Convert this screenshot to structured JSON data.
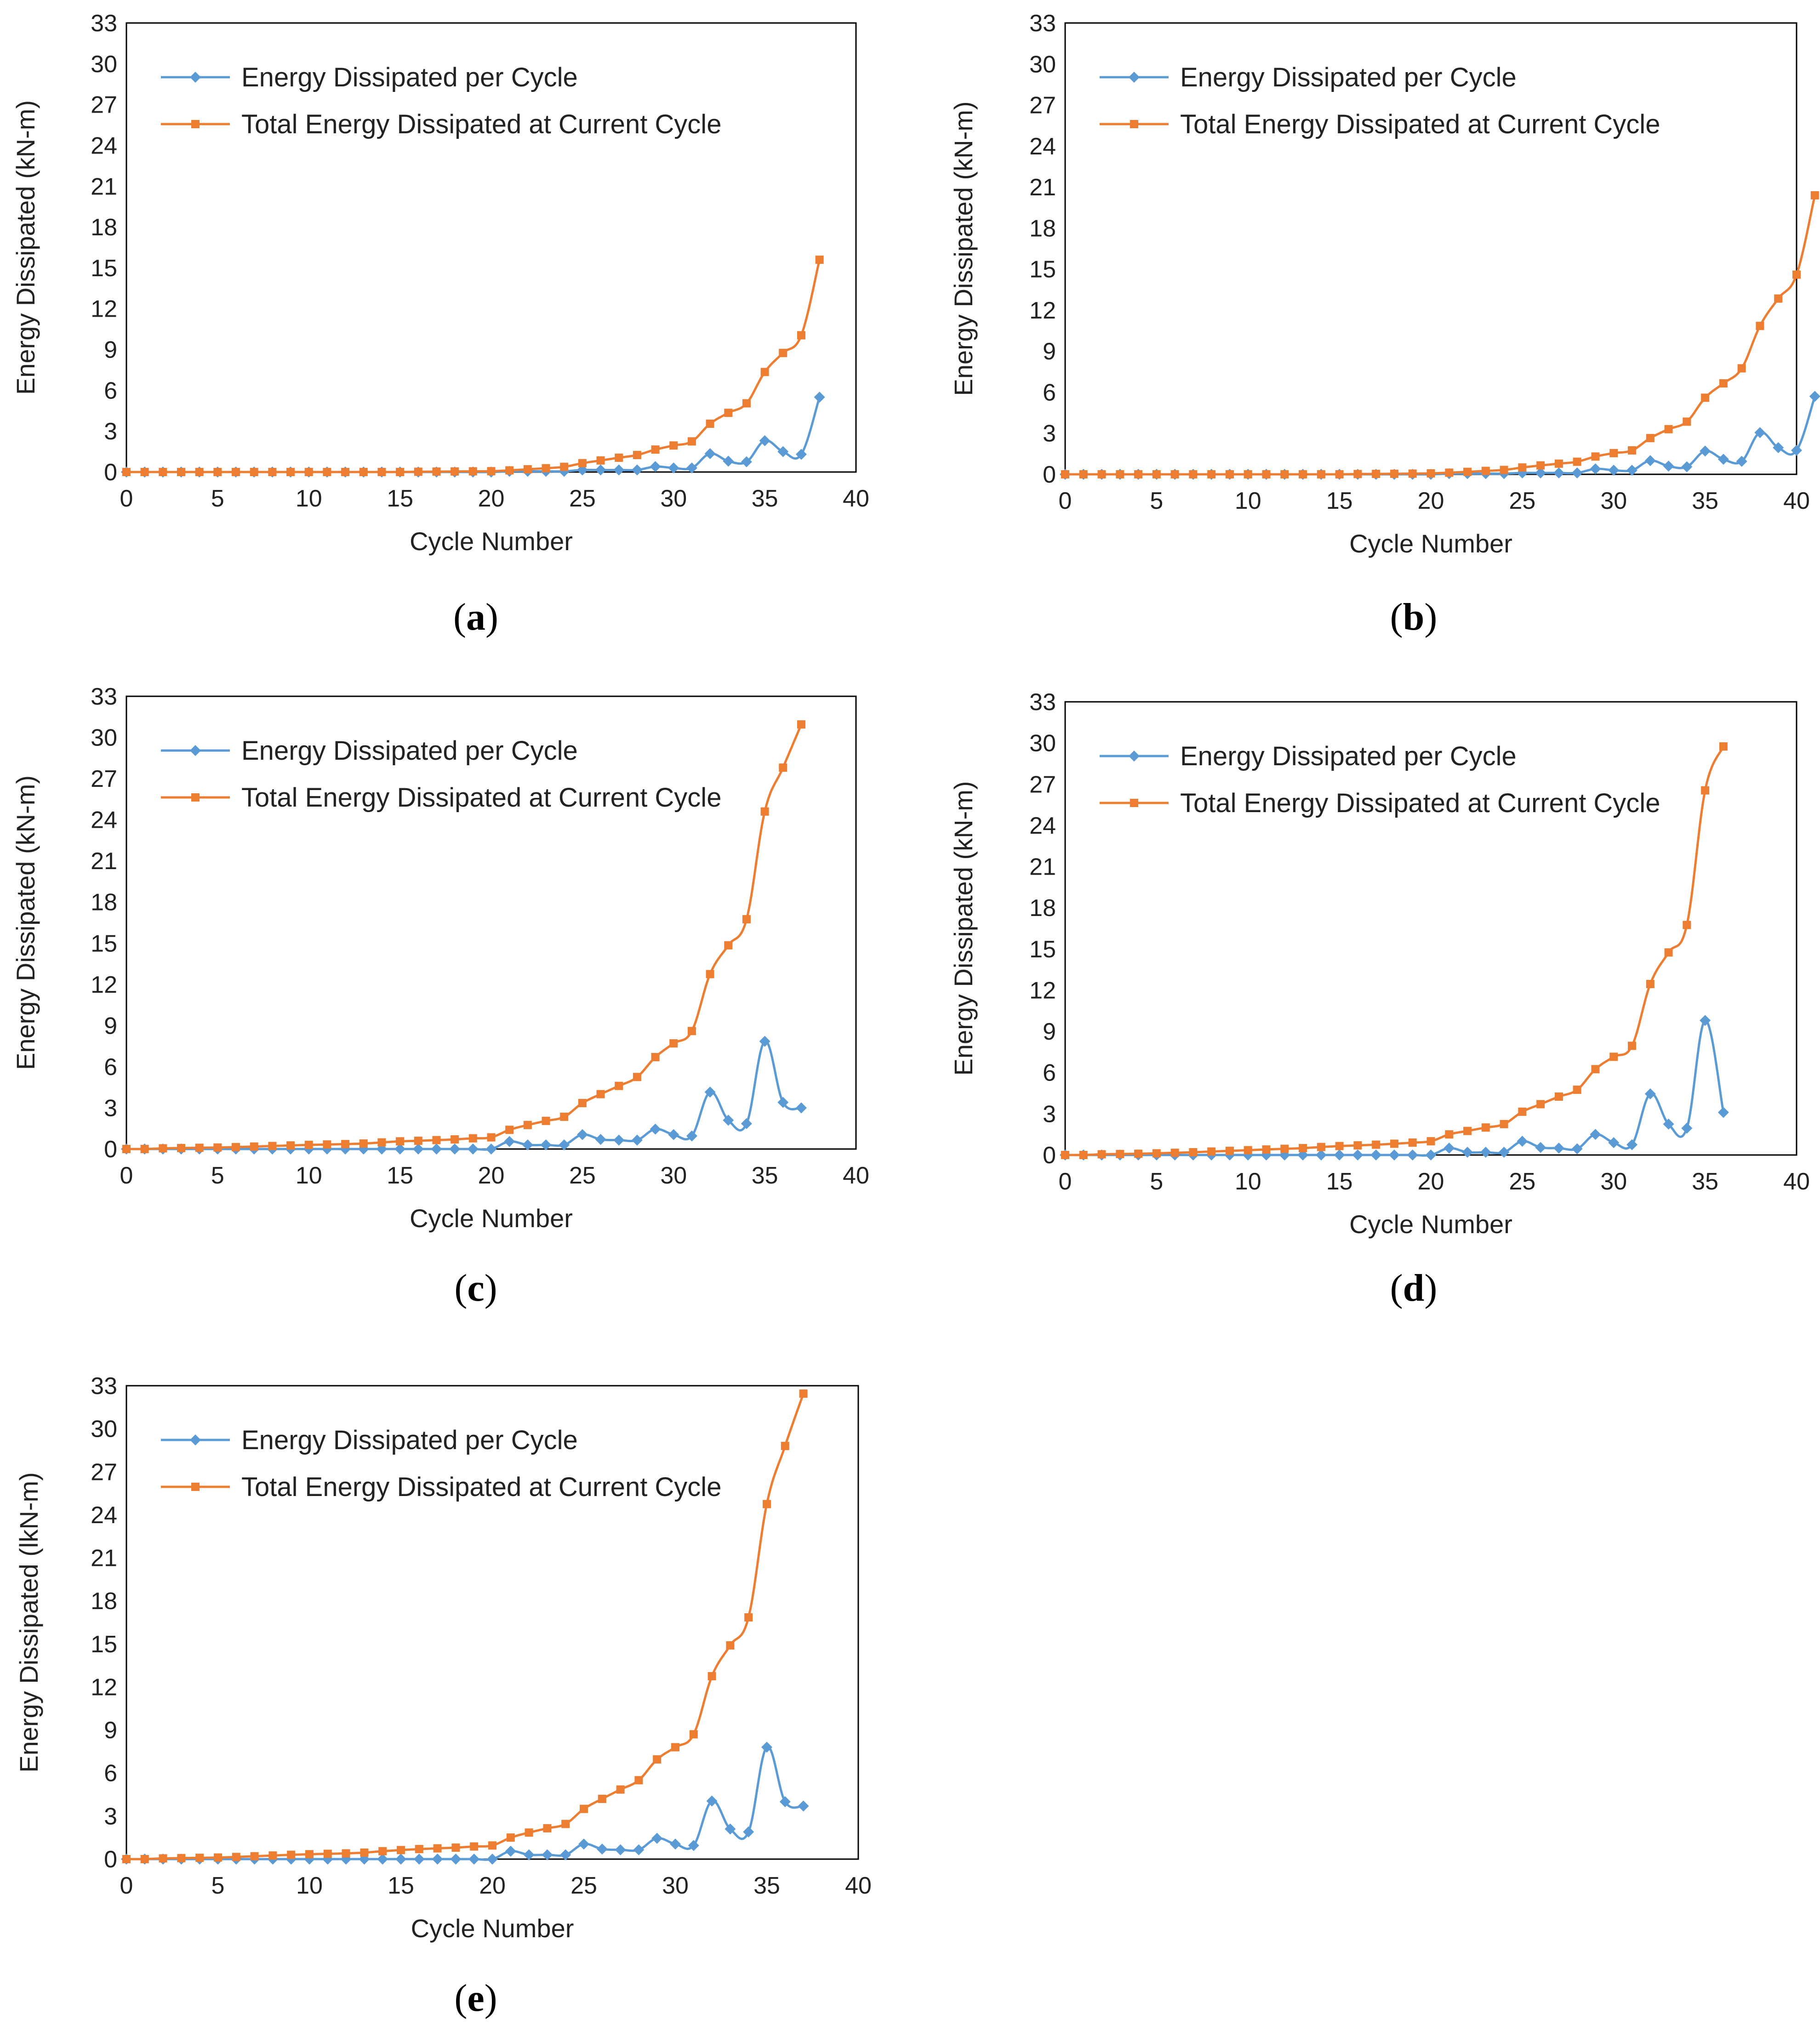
{
  "colors": {
    "per_cycle": "#5b9bd5",
    "total": "#ed7d31",
    "frame": "#000000"
  },
  "chart_data": [
    {
      "panel": "a",
      "type": "line",
      "xlabel": "Cycle Number",
      "ylabel": "Energy Dissipated (kN-m)",
      "xlim": [
        0,
        40
      ],
      "ylim": [
        0,
        33
      ],
      "xticks": [
        0,
        5,
        10,
        15,
        20,
        25,
        30,
        35,
        40
      ],
      "yticks": [
        0,
        3,
        6,
        9,
        12,
        15,
        18,
        21,
        24,
        27,
        30,
        33
      ],
      "legend_position": "top-left",
      "series": [
        {
          "name": "Energy Dissipated per Cycle",
          "marker": "diamond",
          "x": [
            0,
            1,
            2,
            3,
            4,
            5,
            6,
            7,
            8,
            9,
            10,
            11,
            12,
            13,
            14,
            15,
            16,
            17,
            18,
            19,
            20,
            21,
            22,
            23,
            24,
            25,
            26,
            27,
            28,
            29,
            30,
            31,
            32,
            33,
            34,
            35,
            36,
            37,
            38
          ],
          "y": [
            0,
            0,
            0,
            0,
            0,
            0,
            0,
            0,
            0,
            0,
            0,
            0,
            0,
            0,
            0,
            0,
            0,
            0,
            0,
            0,
            0,
            0.05,
            0.05,
            0.05,
            0.05,
            0.15,
            0.15,
            0.15,
            0.15,
            0.4,
            0.3,
            0.3,
            1.35,
            0.8,
            0.75,
            2.3,
            1.5,
            1.3,
            5.5
          ]
        },
        {
          "name": "Total Energy Dissipated at Current Cycle",
          "marker": "square",
          "x": [
            0,
            1,
            2,
            3,
            4,
            5,
            6,
            7,
            8,
            9,
            10,
            11,
            12,
            13,
            14,
            15,
            16,
            17,
            18,
            19,
            20,
            21,
            22,
            23,
            24,
            25,
            26,
            27,
            28,
            29,
            30,
            31,
            32,
            33,
            34,
            35,
            36,
            37,
            38
          ],
          "y": [
            0,
            0,
            0,
            0,
            0,
            0,
            0,
            0,
            0,
            0,
            0,
            0,
            0,
            0,
            0,
            0,
            0.02,
            0.03,
            0.04,
            0.05,
            0.06,
            0.12,
            0.2,
            0.28,
            0.38,
            0.65,
            0.85,
            1.05,
            1.25,
            1.65,
            1.95,
            2.25,
            3.55,
            4.35,
            5.05,
            7.35,
            8.75,
            10.05,
            15.6
          ]
        }
      ]
    },
    {
      "panel": "b",
      "type": "line",
      "xlabel": "Cycle Number",
      "ylabel": "Energy Dissipated (kN-m)",
      "xlim": [
        0,
        40
      ],
      "ylim": [
        0,
        33
      ],
      "xticks": [
        0,
        5,
        10,
        15,
        20,
        25,
        30,
        35,
        40
      ],
      "yticks": [
        0,
        3,
        6,
        9,
        12,
        15,
        18,
        21,
        24,
        27,
        30,
        33
      ],
      "legend_position": "top-left",
      "series": [
        {
          "name": "Energy Dissipated per Cycle",
          "marker": "diamond",
          "x": [
            0,
            1,
            2,
            3,
            4,
            5,
            6,
            7,
            8,
            9,
            10,
            11,
            12,
            13,
            14,
            15,
            16,
            17,
            18,
            19,
            20,
            21,
            22,
            23,
            24,
            25,
            26,
            27,
            28,
            29,
            30,
            31,
            32,
            33,
            34,
            35,
            36,
            37,
            38,
            39,
            40,
            41
          ],
          "y": [
            0,
            0,
            0,
            0,
            0,
            0,
            0,
            0,
            0,
            0,
            0,
            0,
            0,
            0,
            0,
            0,
            0,
            0,
            0,
            0,
            0,
            0.05,
            0.05,
            0.05,
            0.05,
            0.1,
            0.1,
            0.1,
            0.1,
            0.4,
            0.3,
            0.3,
            1.0,
            0.6,
            0.55,
            1.7,
            1.1,
            0.95,
            3.05,
            1.95,
            1.75,
            5.7
          ]
        },
        {
          "name": "Total Energy Dissipated at Current Cycle",
          "marker": "square",
          "x": [
            0,
            1,
            2,
            3,
            4,
            5,
            6,
            7,
            8,
            9,
            10,
            11,
            12,
            13,
            14,
            15,
            16,
            17,
            18,
            19,
            20,
            21,
            22,
            23,
            24,
            25,
            26,
            27,
            28,
            29,
            30,
            31,
            32,
            33,
            34,
            35,
            36,
            37,
            38,
            39,
            40,
            41
          ],
          "y": [
            0,
            0,
            0,
            0,
            0,
            0,
            0,
            0,
            0,
            0,
            0,
            0,
            0,
            0,
            0,
            0,
            0.02,
            0.03,
            0.04,
            0.05,
            0.07,
            0.12,
            0.18,
            0.25,
            0.32,
            0.5,
            0.65,
            0.78,
            0.92,
            1.3,
            1.55,
            1.75,
            2.65,
            3.3,
            3.85,
            5.6,
            6.65,
            7.75,
            10.85,
            12.85,
            14.6,
            20.4
          ]
        }
      ]
    },
    {
      "panel": "c",
      "type": "line",
      "xlabel": "Cycle Number",
      "ylabel": "Energy Dissipated (kN-m)",
      "xlim": [
        0,
        40
      ],
      "ylim": [
        0,
        33
      ],
      "xticks": [
        0,
        5,
        10,
        15,
        20,
        25,
        30,
        35,
        40
      ],
      "yticks": [
        0,
        3,
        6,
        9,
        12,
        15,
        18,
        21,
        24,
        27,
        30,
        33
      ],
      "legend_position": "top-left",
      "series": [
        {
          "name": "Energy Dissipated per Cycle",
          "marker": "diamond",
          "x": [
            0,
            1,
            2,
            3,
            4,
            5,
            6,
            7,
            8,
            9,
            10,
            11,
            12,
            13,
            14,
            15,
            16,
            17,
            18,
            19,
            20,
            21,
            22,
            23,
            24,
            25,
            26,
            27,
            28,
            29,
            30,
            31,
            32,
            33,
            34,
            35,
            36,
            37
          ],
          "y": [
            0,
            0,
            0,
            0,
            0,
            0,
            0,
            0,
            0,
            0,
            0,
            0,
            0,
            0,
            0,
            0,
            0,
            0,
            0,
            0,
            0,
            0.55,
            0.3,
            0.3,
            0.3,
            1.05,
            0.7,
            0.65,
            0.65,
            1.45,
            1.05,
            0.95,
            4.15,
            2.1,
            1.85,
            7.85,
            3.4,
            3.0
          ]
        },
        {
          "name": "Total Energy Dissipated at Current Cycle",
          "marker": "square",
          "x": [
            0,
            1,
            2,
            3,
            4,
            5,
            6,
            7,
            8,
            9,
            10,
            11,
            12,
            13,
            14,
            15,
            16,
            17,
            18,
            19,
            20,
            21,
            22,
            23,
            24,
            25,
            26,
            27,
            28,
            29,
            30,
            31,
            32,
            33,
            34,
            35,
            36,
            37
          ],
          "y": [
            0,
            0,
            0.05,
            0.07,
            0.09,
            0.11,
            0.14,
            0.18,
            0.22,
            0.26,
            0.3,
            0.33,
            0.36,
            0.4,
            0.48,
            0.56,
            0.6,
            0.65,
            0.7,
            0.78,
            0.85,
            1.4,
            1.75,
            2.05,
            2.35,
            3.35,
            4.0,
            4.6,
            5.25,
            6.7,
            7.7,
            8.6,
            12.75,
            14.85,
            16.75,
            24.6,
            27.8,
            30.95
          ]
        }
      ]
    },
    {
      "panel": "d",
      "type": "line",
      "xlabel": "Cycle Number",
      "ylabel": "Energy Dissipated (kN-m)",
      "xlim": [
        0,
        40
      ],
      "ylim": [
        0,
        33
      ],
      "xticks": [
        0,
        5,
        10,
        15,
        20,
        25,
        30,
        35,
        40
      ],
      "yticks": [
        0,
        3,
        6,
        9,
        12,
        15,
        18,
        21,
        24,
        27,
        30,
        33
      ],
      "legend_position": "top-left",
      "series": [
        {
          "name": "Energy Dissipated per Cycle",
          "marker": "diamond",
          "x": [
            0,
            1,
            2,
            3,
            4,
            5,
            6,
            7,
            8,
            9,
            10,
            11,
            12,
            13,
            14,
            15,
            16,
            17,
            18,
            19,
            20,
            21,
            22,
            23,
            24,
            25,
            26,
            27,
            28,
            29,
            30,
            31,
            32,
            33,
            34,
            35,
            36
          ],
          "y": [
            0,
            0,
            0,
            0,
            0,
            0,
            0,
            0,
            0,
            0,
            0,
            0,
            0,
            0,
            0,
            0,
            0,
            0,
            0,
            0,
            0,
            0.5,
            0.2,
            0.2,
            0.2,
            1.0,
            0.55,
            0.5,
            0.45,
            1.5,
            0.9,
            0.75,
            4.45,
            2.25,
            1.95,
            9.8,
            3.1
          ]
        },
        {
          "name": "Total Energy Dissipated at Current Cycle",
          "marker": "square",
          "x": [
            0,
            1,
            2,
            3,
            4,
            5,
            6,
            7,
            8,
            9,
            10,
            11,
            12,
            13,
            14,
            15,
            16,
            17,
            18,
            19,
            20,
            21,
            22,
            23,
            24,
            25,
            26,
            27,
            28,
            29,
            30,
            31,
            32,
            33,
            34,
            35,
            36
          ],
          "y": [
            0,
            0,
            0.05,
            0.07,
            0.09,
            0.12,
            0.16,
            0.2,
            0.25,
            0.3,
            0.35,
            0.4,
            0.45,
            0.5,
            0.58,
            0.65,
            0.7,
            0.75,
            0.82,
            0.9,
            1.0,
            1.5,
            1.75,
            2.0,
            2.25,
            3.15,
            3.7,
            4.25,
            4.75,
            6.25,
            7.15,
            7.95,
            12.45,
            14.75,
            16.75,
            26.55,
            29.75
          ]
        }
      ]
    },
    {
      "panel": "e",
      "type": "line",
      "xlabel": "Cycle Number",
      "ylabel": "Energy Dissipated (lkN-m)",
      "xlim": [
        0,
        40
      ],
      "ylim": [
        0,
        33
      ],
      "xticks": [
        0,
        5,
        10,
        15,
        20,
        25,
        30,
        35,
        40
      ],
      "yticks": [
        0,
        3,
        6,
        9,
        12,
        15,
        18,
        21,
        24,
        27,
        30,
        33
      ],
      "legend_position": "top-left",
      "series": [
        {
          "name": "Energy Dissipated per Cycle",
          "marker": "diamond",
          "x": [
            0,
            1,
            2,
            3,
            4,
            5,
            6,
            7,
            8,
            9,
            10,
            11,
            12,
            13,
            14,
            15,
            16,
            17,
            18,
            19,
            20,
            21,
            22,
            23,
            24,
            25,
            26,
            27,
            28,
            29,
            30,
            31,
            32,
            33,
            34,
            35,
            36,
            37
          ],
          "y": [
            0,
            0,
            0,
            0,
            0,
            0,
            0,
            0,
            0,
            0,
            0,
            0,
            0,
            0,
            0,
            0,
            0,
            0,
            0,
            0,
            0,
            0.55,
            0.3,
            0.3,
            0.3,
            1.05,
            0.7,
            0.65,
            0.65,
            1.45,
            1.05,
            0.95,
            4.05,
            2.1,
            1.9,
            7.8,
            4.0,
            3.7
          ]
        },
        {
          "name": "Total Energy Dissipated at Current Cycle",
          "marker": "square",
          "x": [
            0,
            1,
            2,
            3,
            4,
            5,
            6,
            7,
            8,
            9,
            10,
            11,
            12,
            13,
            14,
            15,
            16,
            17,
            18,
            19,
            20,
            21,
            22,
            23,
            24,
            25,
            26,
            27,
            28,
            29,
            30,
            31,
            32,
            33,
            34,
            35,
            36,
            37
          ],
          "y": [
            0,
            0,
            0.05,
            0.07,
            0.09,
            0.11,
            0.15,
            0.2,
            0.25,
            0.3,
            0.34,
            0.37,
            0.4,
            0.45,
            0.55,
            0.63,
            0.7,
            0.75,
            0.8,
            0.88,
            0.95,
            1.5,
            1.85,
            2.15,
            2.45,
            3.5,
            4.2,
            4.85,
            5.5,
            6.95,
            7.8,
            8.7,
            12.75,
            14.9,
            16.85,
            24.75,
            28.8,
            32.45
          ]
        }
      ]
    }
  ]
}
